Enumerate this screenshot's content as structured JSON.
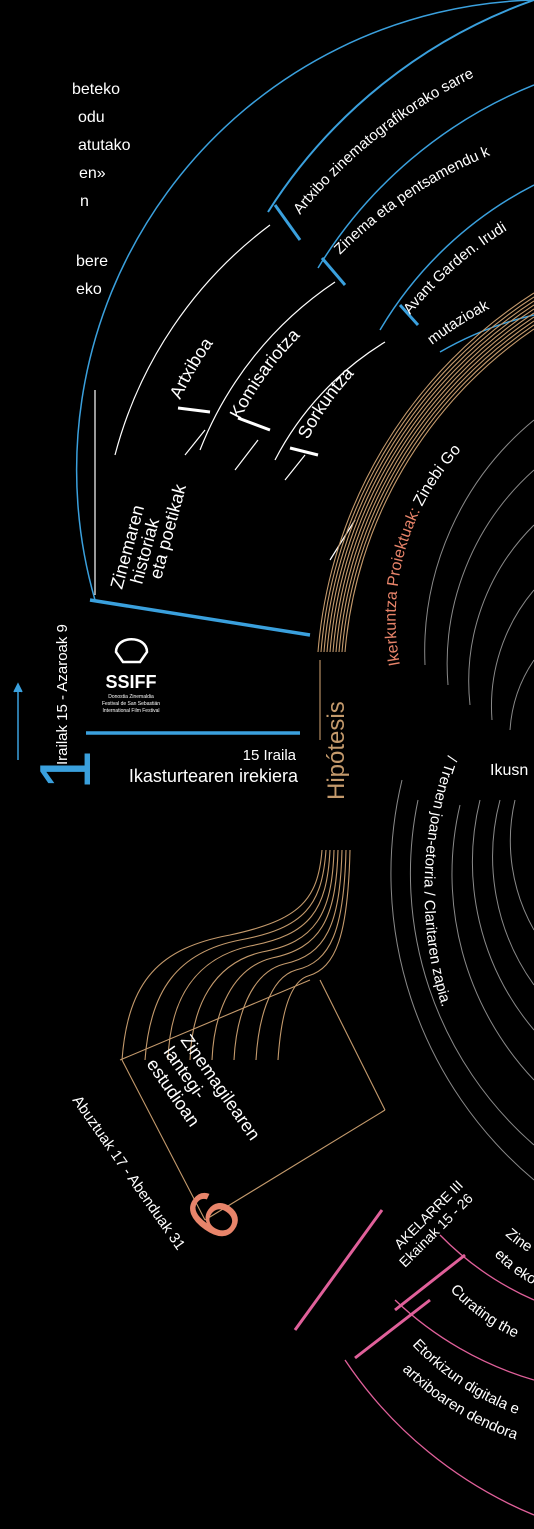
{
  "colors": {
    "background": "#000000",
    "white": "#ffffff",
    "blue": "#3aa0dd",
    "gold": "#c49a6c",
    "salmon": "#e8846a",
    "pink": "#e0609a",
    "gray": "#7a7a7a"
  },
  "intro_fragments": [
    "beteko",
    "odu",
    "atutako",
    "en»",
    "n",
    "",
    "bere",
    "eko"
  ],
  "module_1": {
    "number": "1",
    "dates": "Irailak 15 - Azaroak 9",
    "opening_date": "15 Iraila",
    "opening_title": "Ikasturtearen irekiera",
    "logo_name": "SSIFF",
    "logo_subtitle": [
      "Donostia Zinemaldia",
      "Festival de San Sebastián",
      "International Film Festival"
    ],
    "section_title": "Hipótesis",
    "theme_lines": [
      "Zinemaren",
      "historiak",
      "eta poetikak"
    ],
    "areas": [
      "Artxiboa",
      "Komisariotza",
      "Sorkuntza"
    ],
    "courses": [
      "Artxibo zinematografikorako sarre",
      "Zinema eta pentsamendu k",
      "Avant Garden. Irudi",
      "mutazioak"
    ]
  },
  "research": {
    "label": "Ikerkuntza Proiektuak:",
    "name": "Zinebi Go"
  },
  "center": {
    "label": "Ikusn"
  },
  "arc_text": "/ Trenen joan-etorria / Claritaren zapia.",
  "arc_text_tail": "/ C",
  "module_6": {
    "number": "6",
    "dates": "Abuztuak 17 - Abenduak 31",
    "theme_lines": [
      "Zinemagilearen",
      "lantegi-",
      "estudioan"
    ]
  },
  "akelarre": {
    "title": "AKELARRE III",
    "dates": "Ekainak 15 - 26",
    "courses": [
      "Zinem",
      "eta eko",
      "Curating the",
      "Etorkizun digitala e",
      "artxiboaren dendora"
    ]
  }
}
